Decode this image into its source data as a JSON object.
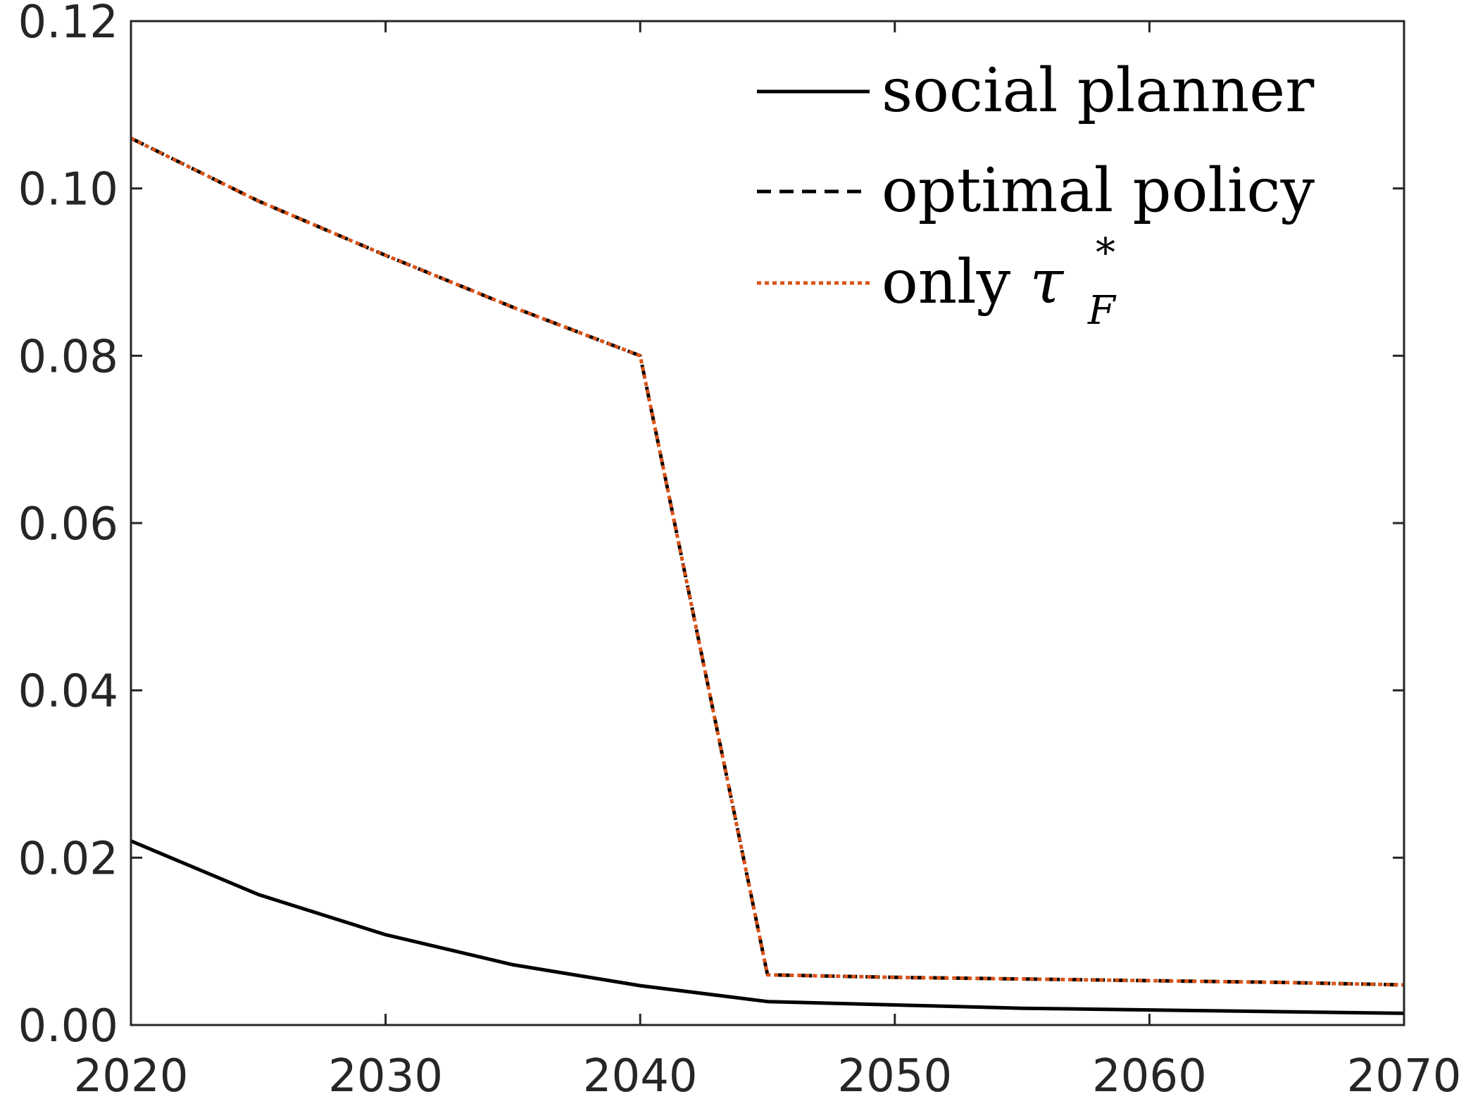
{
  "chart_data": {
    "type": "line",
    "title": "",
    "xlabel": "",
    "ylabel": "",
    "xlim": [
      2020,
      2070
    ],
    "ylim": [
      0,
      0.12
    ],
    "x_ticks": [
      "2020",
      "2030",
      "2040",
      "2050",
      "2060",
      "2070"
    ],
    "y_ticks": [
      "0.00",
      "0.02",
      "0.04",
      "0.06",
      "0.08",
      "0.10",
      "0.12"
    ],
    "grid": false,
    "legend_position": "top-right",
    "x": [
      2020,
      2025,
      2030,
      2035,
      2040,
      2045,
      2050,
      2055,
      2060,
      2065,
      2070
    ],
    "series": [
      {
        "name": "social planner",
        "style": "solid",
        "color": "#000000",
        "values": [
          0.022,
          0.0156,
          0.0108,
          0.0072,
          0.0047,
          0.0028,
          0.0024,
          0.002,
          0.0018,
          0.0016,
          0.0014
        ]
      },
      {
        "name": "optimal policy",
        "style": "dashed",
        "color": "#000000",
        "values": [
          0.106,
          0.0985,
          0.092,
          0.0858,
          0.08,
          0.006,
          0.0057,
          0.0055,
          0.0053,
          0.0051,
          0.0048
        ]
      },
      {
        "name_prefix": "only ",
        "name_symbol": "τ",
        "name_superscript": "*",
        "name_subscript": "F",
        "style": "dotted",
        "color": "#D95319",
        "values": [
          0.106,
          0.0985,
          0.092,
          0.0858,
          0.08,
          0.006,
          0.0057,
          0.0055,
          0.0053,
          0.0051,
          0.0048
        ]
      }
    ]
  }
}
